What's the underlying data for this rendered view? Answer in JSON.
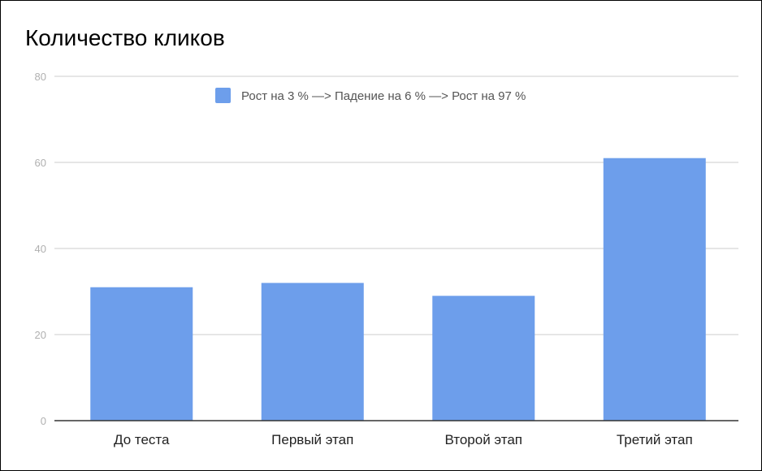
{
  "chart_data": {
    "type": "bar",
    "title": "Количество кликов",
    "categories": [
      "До теста",
      "Первый этап",
      "Второй этап",
      "Третий этап"
    ],
    "series": [
      {
        "name": "Рост на 3 % —> Падение на 6 % —> Рост на 97 %",
        "values": [
          31,
          32,
          29,
          61
        ],
        "color": "#6d9eeb"
      }
    ],
    "yticks": [
      0,
      20,
      40,
      60,
      80
    ],
    "ylim": [
      0,
      80
    ],
    "xlabel": "",
    "ylabel": "",
    "grid": true,
    "legend_position": "top-center",
    "colors": {
      "bar": "#6d9eeb",
      "grid": "#cccccc",
      "axis": "#333333",
      "tick_text": "#b0b0b0"
    }
  }
}
